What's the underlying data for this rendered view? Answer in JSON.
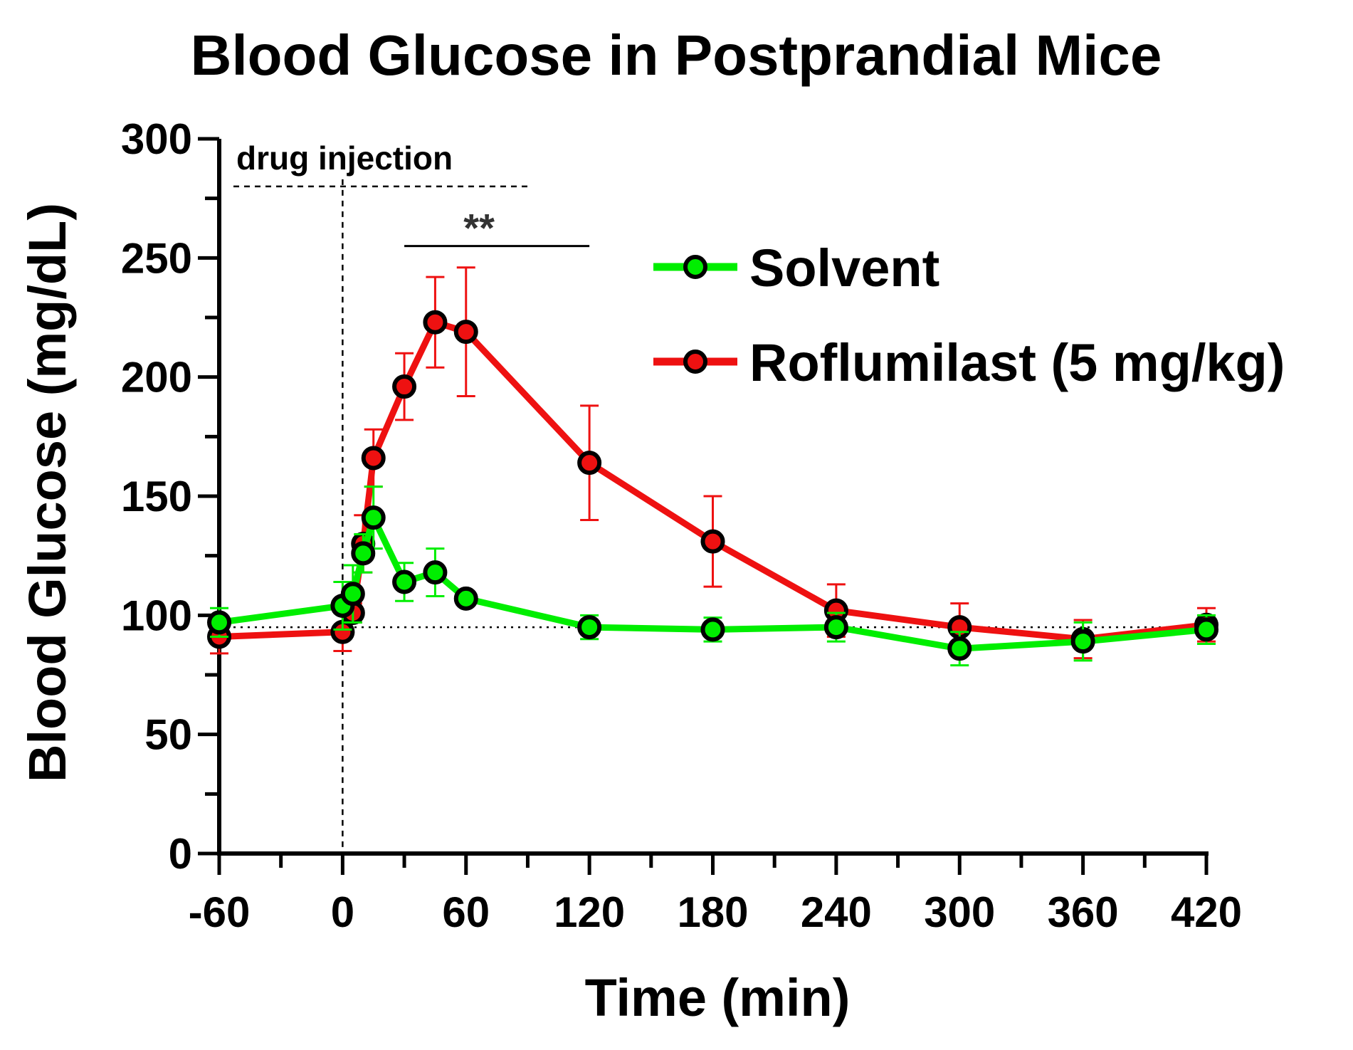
{
  "chart_data": {
    "type": "line",
    "title": "Blood Glucose in Postprandial Mice",
    "xlabel": "Time (min)",
    "ylabel": "Blood Glucose (mg/dL)",
    "xlim": [
      -60,
      420
    ],
    "ylim": [
      0,
      300
    ],
    "x_ticks": [
      -60,
      0,
      60,
      120,
      180,
      240,
      300,
      360,
      420
    ],
    "x_tick_labels": [
      "-60",
      "0",
      "60",
      "120",
      "180",
      "240",
      "300",
      "360",
      "420"
    ],
    "x_minor_step": 30,
    "y_ticks": [
      0,
      50,
      100,
      150,
      200,
      250,
      300
    ],
    "y_tick_labels": [
      "0",
      "50",
      "100",
      "150",
      "200",
      "250",
      "300"
    ],
    "y_minor_step": 25,
    "baseline_y": 95,
    "injection_x": 0,
    "annotations": {
      "injection_label": "drug injection",
      "injection_line_y": 280,
      "significance_label": "**",
      "significance_x": [
        30,
        120
      ],
      "significance_y": 255
    },
    "legend_position": "top-right",
    "series": [
      {
        "name": "Solvent",
        "color": "#00ee00",
        "x": [
          -60,
          0,
          5,
          10,
          15,
          30,
          45,
          60,
          120,
          180,
          240,
          300,
          360,
          420
        ],
        "values": [
          97,
          104,
          109,
          126,
          141,
          114,
          118,
          107,
          95,
          94,
          95,
          86,
          89,
          94
        ],
        "errors": [
          6,
          10,
          12,
          8,
          13,
          8,
          10,
          0,
          5,
          5,
          6,
          7,
          8,
          6
        ]
      },
      {
        "name": "Roflumilast (5 mg/kg)",
        "color": "#ee1111",
        "x": [
          -60,
          0,
          5,
          10,
          15,
          30,
          45,
          60,
          120,
          180,
          240,
          300,
          360,
          420
        ],
        "values": [
          91,
          93,
          101,
          130,
          166,
          196,
          223,
          219,
          164,
          131,
          102,
          95,
          90,
          96
        ],
        "errors": [
          7,
          8,
          4,
          12,
          12,
          14,
          19,
          27,
          24,
          19,
          11,
          10,
          8,
          7
        ]
      }
    ]
  }
}
